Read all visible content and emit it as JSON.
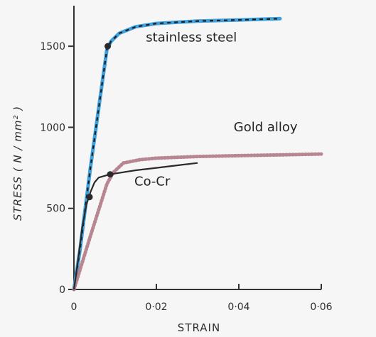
{
  "chart_data": {
    "type": "line",
    "title": "",
    "xlabel": "STRAIN",
    "ylabel": "STRESS ( N / mm² )",
    "xlim": [
      0,
      0.06
    ],
    "ylim": [
      0,
      1750
    ],
    "grid": false,
    "x_ticks": [
      {
        "value": 0,
        "label": "0"
      },
      {
        "value": 0.02,
        "label": "0·02"
      },
      {
        "value": 0.04,
        "label": "0·04"
      },
      {
        "value": 0.06,
        "label": "0·06"
      }
    ],
    "y_ticks": [
      {
        "value": 0,
        "label": "0"
      },
      {
        "value": 500,
        "label": "500"
      },
      {
        "value": 1000,
        "label": "1000"
      },
      {
        "value": 1500,
        "label": "1500"
      }
    ],
    "series": [
      {
        "name": "stainless steel",
        "color": "#3ea0dc",
        "style": "dashed-over-solid",
        "label_anchor": {
          "x": 0.0285,
          "y": 1530
        },
        "points": [
          [
            0,
            0
          ],
          [
            0.0015,
            250
          ],
          [
            0.004,
            750
          ],
          [
            0.007,
            1300
          ],
          [
            0.008,
            1480
          ],
          [
            0.009,
            1530
          ],
          [
            0.011,
            1580
          ],
          [
            0.015,
            1620
          ],
          [
            0.02,
            1640
          ],
          [
            0.03,
            1655
          ],
          [
            0.04,
            1662
          ],
          [
            0.05,
            1670
          ]
        ],
        "markers": [
          [
            0.0082,
            1500
          ]
        ]
      },
      {
        "name": "Gold alloy",
        "color": "#b07a86",
        "style": "dotted",
        "label_anchor": {
          "x": 0.0465,
          "y": 975
        },
        "points": [
          [
            0,
            0
          ],
          [
            0.004,
            330
          ],
          [
            0.008,
            650
          ],
          [
            0.0095,
            720
          ],
          [
            0.012,
            780
          ],
          [
            0.016,
            800
          ],
          [
            0.02,
            810
          ],
          [
            0.03,
            820
          ],
          [
            0.04,
            825
          ],
          [
            0.05,
            830
          ],
          [
            0.06,
            835
          ]
        ],
        "markers": [
          [
            0.0088,
            710
          ]
        ]
      },
      {
        "name": "Co-Cr",
        "color": "#2a2a2a",
        "style": "solid",
        "label_anchor": {
          "x": 0.019,
          "y": 640
        },
        "points": [
          [
            0,
            0
          ],
          [
            0.001,
            180
          ],
          [
            0.002,
            380
          ],
          [
            0.003,
            520
          ],
          [
            0.004,
            600
          ],
          [
            0.005,
            660
          ],
          [
            0.006,
            690
          ],
          [
            0.008,
            705
          ],
          [
            0.01,
            715
          ],
          [
            0.015,
            735
          ],
          [
            0.02,
            750
          ],
          [
            0.025,
            765
          ],
          [
            0.03,
            780
          ]
        ],
        "markers": [
          [
            0.0038,
            570
          ]
        ]
      }
    ]
  }
}
